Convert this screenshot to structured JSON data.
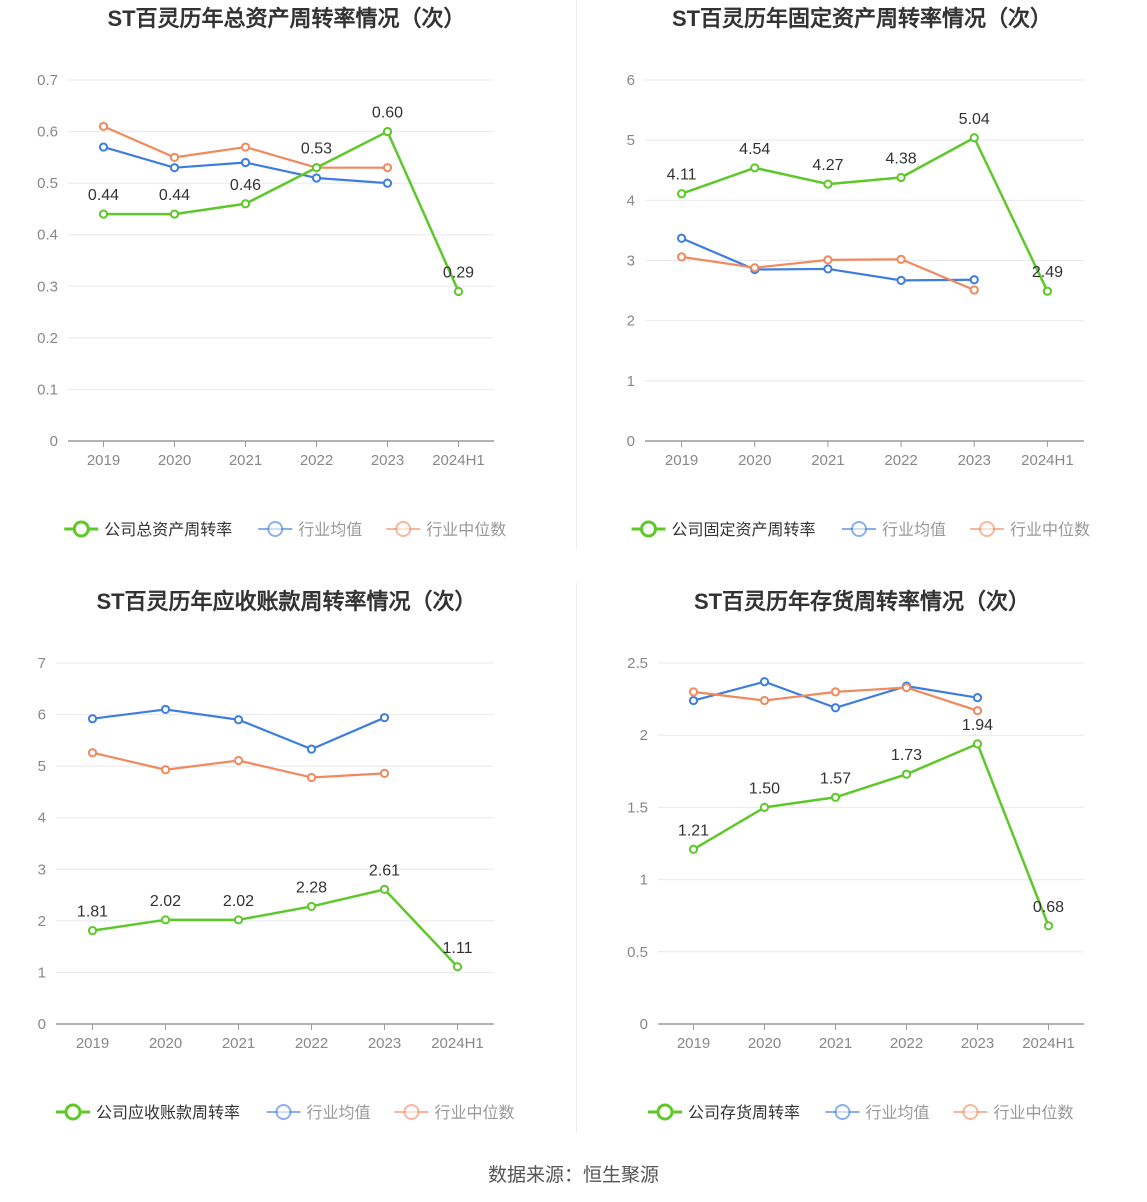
{
  "source_text": "数据来源：恒生聚源",
  "colors": {
    "company": "#5ec82a",
    "avg": "#3e7de0",
    "median": "#f0895d"
  },
  "chart_data": [
    {
      "type": "line",
      "title": "ST百灵历年总资产周转率情况（次）",
      "categories": [
        "2019",
        "2020",
        "2021",
        "2022",
        "2023",
        "2024H1"
      ],
      "ylim": [
        0,
        0.7
      ],
      "yticks": [
        0,
        0.1,
        0.2,
        0.3,
        0.4,
        0.5,
        0.6,
        0.7
      ],
      "ytick_labels": [
        "0",
        "0.1",
        "0.2",
        "0.3",
        "0.4",
        "0.5",
        "0.6",
        "0.7"
      ],
      "grid": true,
      "legend_position": "bottom",
      "series": [
        {
          "name": "公司总资产周转率",
          "role": "company",
          "values": [
            0.44,
            0.44,
            0.46,
            0.53,
            0.6,
            0.29
          ],
          "labels": [
            "0.44",
            "0.44",
            "0.46",
            "0.53",
            "0.60",
            "0.29"
          ]
        },
        {
          "name": "行业均值",
          "role": "avg",
          "values": [
            0.57,
            0.53,
            0.54,
            0.51,
            0.5,
            null
          ]
        },
        {
          "name": "行业中位数",
          "role": "median",
          "values": [
            0.61,
            0.55,
            0.57,
            0.53,
            0.53,
            null
          ]
        }
      ]
    },
    {
      "type": "line",
      "title": "ST百灵历年固定资产周转率情况（次）",
      "categories": [
        "2019",
        "2020",
        "2021",
        "2022",
        "2023",
        "2024H1"
      ],
      "ylim": [
        0,
        6
      ],
      "yticks": [
        0,
        1,
        2,
        3,
        4,
        5,
        6
      ],
      "ytick_labels": [
        "0",
        "1",
        "2",
        "3",
        "4",
        "5",
        "6"
      ],
      "grid": true,
      "legend_position": "bottom",
      "series": [
        {
          "name": "公司固定资产周转率",
          "role": "company",
          "values": [
            4.11,
            4.54,
            4.27,
            4.38,
            5.04,
            2.49
          ],
          "labels": [
            "4.11",
            "4.54",
            "4.27",
            "4.38",
            "5.04",
            "2.49"
          ]
        },
        {
          "name": "行业均值",
          "role": "avg",
          "values": [
            3.37,
            2.85,
            2.86,
            2.67,
            2.68,
            null
          ]
        },
        {
          "name": "行业中位数",
          "role": "median",
          "values": [
            3.06,
            2.88,
            3.01,
            3.02,
            2.51,
            null
          ]
        }
      ]
    },
    {
      "type": "line",
      "title": "ST百灵历年应收账款周转率情况（次）",
      "categories": [
        "2019",
        "2020",
        "2021",
        "2022",
        "2023",
        "2024H1"
      ],
      "ylim": [
        0,
        7
      ],
      "yticks": [
        0,
        1,
        2,
        3,
        4,
        5,
        6,
        7
      ],
      "ytick_labels": [
        "0",
        "1",
        "2",
        "3",
        "4",
        "5",
        "6",
        "7"
      ],
      "grid": true,
      "legend_position": "bottom",
      "series": [
        {
          "name": "公司应收账款周转率",
          "role": "company",
          "values": [
            1.81,
            2.02,
            2.02,
            2.28,
            2.61,
            1.11
          ],
          "labels": [
            "1.81",
            "2.02",
            "2.02",
            "2.28",
            "2.61",
            "1.11"
          ]
        },
        {
          "name": "行业均值",
          "role": "avg",
          "values": [
            5.92,
            6.1,
            5.9,
            5.33,
            5.94,
            null
          ]
        },
        {
          "name": "行业中位数",
          "role": "median",
          "values": [
            5.26,
            4.93,
            5.11,
            4.78,
            4.86,
            null
          ]
        }
      ]
    },
    {
      "type": "line",
      "title": "ST百灵历年存货周转率情况（次）",
      "categories": [
        "2019",
        "2020",
        "2021",
        "2022",
        "2023",
        "2024H1"
      ],
      "ylim": [
        0,
        2.5
      ],
      "yticks": [
        0,
        0.5,
        1,
        1.5,
        2,
        2.5
      ],
      "ytick_labels": [
        "0",
        "0.5",
        "1",
        "1.5",
        "2",
        "2.5"
      ],
      "grid": true,
      "legend_position": "bottom",
      "series": [
        {
          "name": "公司存货周转率",
          "role": "company",
          "values": [
            1.21,
            1.5,
            1.57,
            1.73,
            1.94,
            0.68
          ],
          "labels": [
            "1.21",
            "1.50",
            "1.57",
            "1.73",
            "1.94",
            "0.68"
          ]
        },
        {
          "name": "行业均值",
          "role": "avg",
          "values": [
            2.24,
            2.37,
            2.19,
            2.34,
            2.26,
            null
          ]
        },
        {
          "name": "行业中位数",
          "role": "median",
          "values": [
            2.3,
            2.24,
            2.3,
            2.33,
            2.17,
            null
          ]
        }
      ]
    }
  ]
}
